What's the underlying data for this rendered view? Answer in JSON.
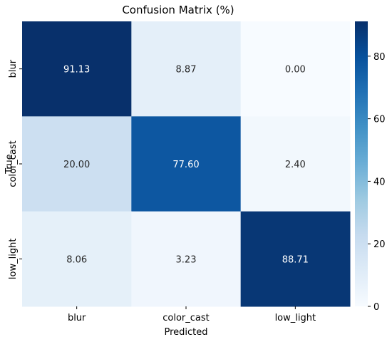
{
  "chart_data": {
    "type": "heatmap",
    "title": "Confusion Matrix (%)",
    "xlabel": "Predicted",
    "ylabel": "True",
    "x_categories": [
      "blur",
      "color_cast",
      "low_light"
    ],
    "y_categories": [
      "blur",
      "color_cast",
      "low_light"
    ],
    "values": [
      [
        91.13,
        8.87,
        0.0
      ],
      [
        20.0,
        77.6,
        2.4
      ],
      [
        8.06,
        3.23,
        88.71
      ]
    ],
    "cell_labels": [
      [
        "91.13",
        "8.87",
        "0.00"
      ],
      [
        "20.00",
        "77.60",
        "2.40"
      ],
      [
        "8.06",
        "3.23",
        "88.71"
      ]
    ],
    "colorbar": {
      "min": 0,
      "max": 91.13,
      "ticks": [
        0,
        20,
        40,
        60,
        80
      ],
      "tick_labels": [
        "0",
        "20",
        "40",
        "60",
        "80"
      ]
    },
    "colormap": "Blues",
    "colors": {
      "low": "#f7fbff",
      "high": "#08306b",
      "text_dark": "#262626",
      "text_light": "#ffffff"
    }
  }
}
